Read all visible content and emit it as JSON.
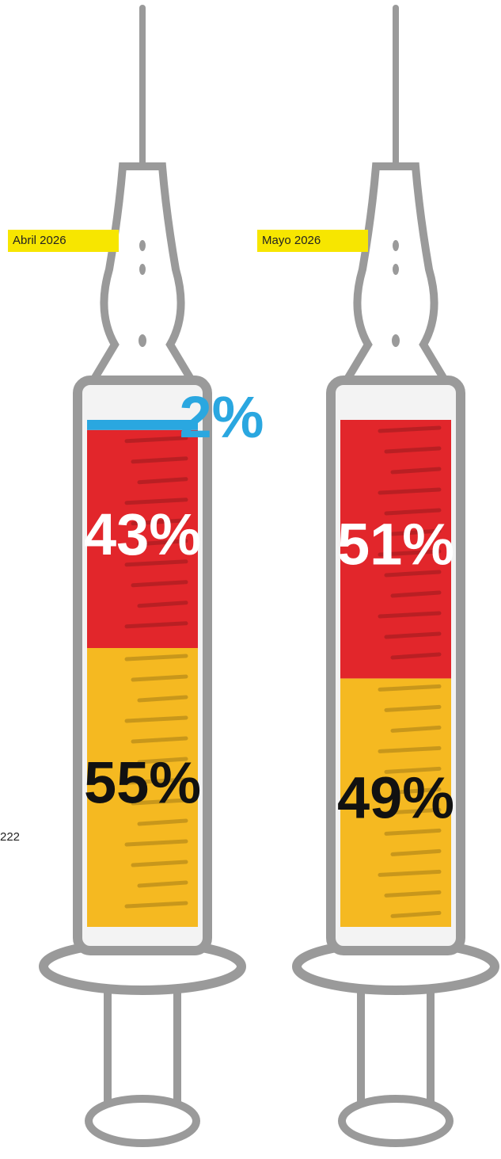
{
  "chart_data": {
    "type": "bar",
    "stacked": true,
    "categories": [
      "Abril 2026",
      "Mayo 2026"
    ],
    "series": [
      {
        "color": "#f5b921",
        "label_color": "#111111",
        "values": [
          55,
          49
        ],
        "value_labels": [
          "55%",
          "49%"
        ]
      },
      {
        "color": "#e2262b",
        "label_color": "#ffffff",
        "values": [
          43,
          51
        ],
        "value_labels": [
          "43%",
          "51%"
        ]
      },
      {
        "color": "#2aa7e0",
        "label_color": "#2aa7e0",
        "values": [
          2,
          null
        ],
        "value_labels": [
          "2%",
          null
        ]
      }
    ],
    "annotations": [
      "222"
    ]
  }
}
